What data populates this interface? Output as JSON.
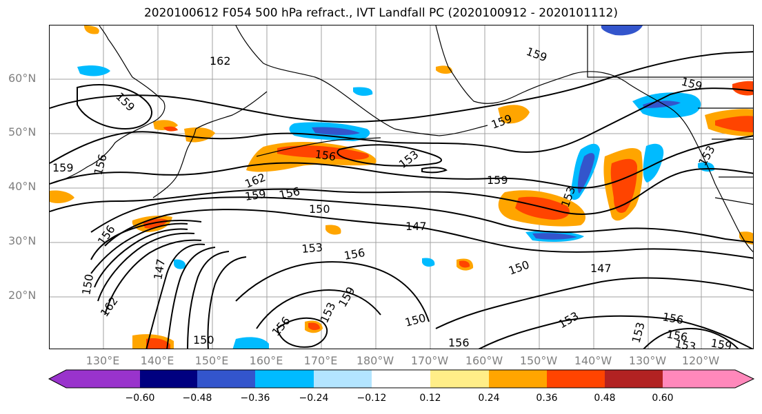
{
  "title": "2020100612 F054 500 hPa refract., IVT Landfall PC (2020100912 - 2020101112)",
  "lat_ticks": [
    "60°N",
    "50°N",
    "40°N",
    "30°N",
    "20°N"
  ],
  "lon_ticks": [
    "130°E",
    "140°E",
    "150°E",
    "160°E",
    "170°E",
    "180°W",
    "170°W",
    "160°W",
    "150°W",
    "140°W",
    "130°W",
    "120°W"
  ],
  "colorbar": {
    "tick_labels": [
      "−0.60",
      "−0.48",
      "−0.36",
      "−0.24",
      "−0.12",
      "0.12",
      "0.24",
      "0.36",
      "0.48",
      "0.60"
    ],
    "colors": [
      "#9933cc",
      "#000080",
      "#3355cc",
      "#00bbff",
      "#b3e5ff",
      "#ffffff",
      "#ffee88",
      "#ffa500",
      "#ff4400",
      "#b22222",
      "#ff88bb"
    ]
  },
  "contour_labels": [
    "162",
    "159",
    "156",
    "153",
    "150",
    "147"
  ]
}
